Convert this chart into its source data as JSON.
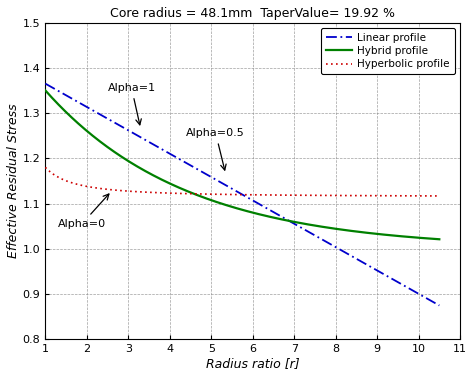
{
  "title": "Core radius = 48.1mm  TaperValue= 19.92 %",
  "xlabel": "Radius ratio [r]",
  "ylabel": "Effective Residual Stress",
  "xlim": [
    1,
    11
  ],
  "ylim": [
    0.8,
    1.5
  ],
  "xticks": [
    1,
    2,
    3,
    4,
    5,
    6,
    7,
    8,
    9,
    10,
    11
  ],
  "yticks": [
    0.8,
    0.9,
    1.0,
    1.1,
    1.2,
    1.3,
    1.4,
    1.5
  ],
  "linear_color": "#0000CC",
  "hybrid_color": "#008000",
  "hyperbolic_color": "#CC0000",
  "bg_color": "#ffffff",
  "fig_width": 4.74,
  "fig_height": 3.77,
  "dpi": 100,
  "linear_start": 1.365,
  "linear_end": 0.875,
  "linear_xstart": 1.0,
  "linear_xend": 10.5,
  "hybrid_A": 0.37,
  "hybrid_b": 1.0,
  "hybrid_C": 0.98,
  "hyp_A": 0.065,
  "hyp_b": 1.5,
  "hyp_C": 1.115
}
